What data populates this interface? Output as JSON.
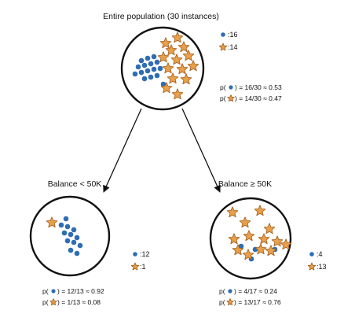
{
  "colors": {
    "dot": "#2e6db4",
    "star_fill": "#e8a04a",
    "star_stroke": "#a05a18",
    "line": "#111111"
  },
  "icons": {
    "dot": "blue-dot-icon",
    "star": "orange-star-icon"
  },
  "root": {
    "title": "Entire population (30 instances)",
    "legend": {
      "dots_label": ":16",
      "stars_label": ":14"
    },
    "prob": {
      "dot_prefix": "p(",
      "dot_text": ") = 16/30 ≈ 0.53",
      "star_prefix": "p(",
      "star_text": ") = 14/30 ≈ 0.47"
    },
    "counts": {
      "dots": 16,
      "stars": 14
    }
  },
  "left": {
    "title": "Balance < 50K",
    "legend": {
      "dots_label": ":12",
      "stars_label": ":1"
    },
    "prob": {
      "dot_prefix": "p(",
      "dot_text": ") = 12/13 ≈ 0.92",
      "star_prefix": "p(",
      "star_text": ") = 1/13 ≈ 0.08"
    },
    "counts": {
      "dots": 12,
      "stars": 1
    }
  },
  "right": {
    "title": "Balance ≥ 50K",
    "legend": {
      "dots_label": ":4",
      "stars_label": ":13"
    },
    "prob": {
      "dot_prefix": "p(",
      "dot_text": ") = 4/17 ≈ 0.24",
      "star_prefix": "p(",
      "star_text": ") = 13/17 ≈ 0.76"
    },
    "counts": {
      "dots": 4,
      "stars": 13
    }
  }
}
